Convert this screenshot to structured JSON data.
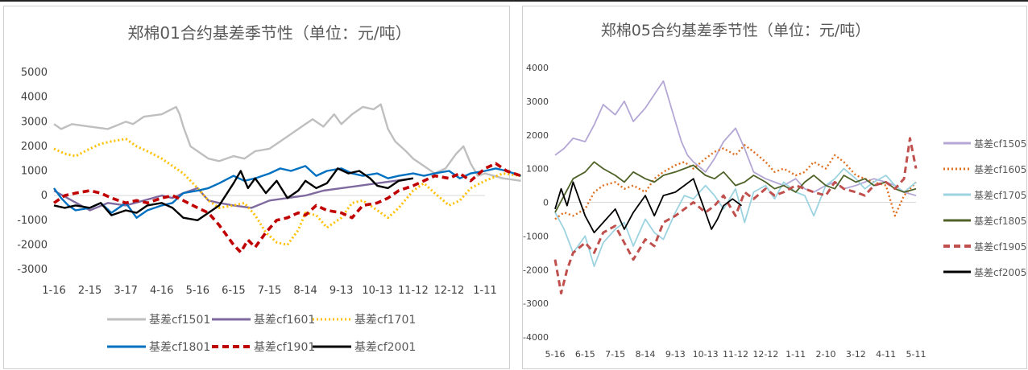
{
  "chart_data": [
    {
      "type": "line",
      "title": "郑棉01合约基差季节性（单位：元/吨）",
      "x_ticks": [
        "1-16",
        "2-15",
        "3-17",
        "4-16",
        "5-16",
        "6-15",
        "7-15",
        "8-14",
        "9-13",
        "10-13",
        "11-12",
        "12-12",
        "1-11"
      ],
      "y_ticks": [
        "5000",
        "4000",
        "3000",
        "2000",
        "1000",
        "0",
        "-1000",
        "-2000",
        "-3000"
      ],
      "ylim": [
        -3000,
        5000
      ],
      "legend_position": "bottom",
      "series": [
        {
          "name": "基差cf1501",
          "color": "#bfbfbf",
          "style": "solid",
          "x": [
            0,
            0.2,
            0.5,
            1,
            1.5,
            2,
            2.2,
            2.5,
            3,
            3.4,
            3.5,
            3.6,
            3.7,
            3.8,
            4,
            4.3,
            4.6,
            5,
            5.3,
            5.6,
            6,
            6.3,
            6.6,
            7,
            7.2,
            7.5,
            7.8,
            8,
            8.3,
            8.6,
            8.9,
            9.1,
            9.3,
            9.5,
            9.8,
            10,
            10.3,
            10.6,
            10.9,
            11.2,
            11.4,
            11.6,
            11.8,
            12,
            12.5,
            13
          ],
          "y": [
            2900,
            2700,
            2900,
            2800,
            2700,
            3000,
            2900,
            3200,
            3300,
            3600,
            3300,
            2800,
            2400,
            2000,
            1800,
            1500,
            1400,
            1600,
            1500,
            1800,
            1900,
            2200,
            2500,
            2900,
            3100,
            2800,
            3300,
            2900,
            3300,
            3600,
            3500,
            3700,
            2700,
            2200,
            1800,
            1500,
            1200,
            900,
            1100,
            1700,
            2000,
            1300,
            800,
            900,
            700,
            600
          ]
        },
        {
          "name": "基差cf1601",
          "color": "#7f6a9f",
          "style": "solid",
          "x": [
            0,
            0.5,
            1,
            1.5,
            2,
            2.5,
            3,
            3.3,
            3.6,
            4,
            4.3,
            4.6,
            5,
            5.5,
            6,
            6.5,
            7,
            7.5,
            8,
            8.5,
            9,
            9.5,
            10
          ],
          "y": [
            200,
            -200,
            -600,
            -300,
            -400,
            -200,
            0,
            -100,
            100,
            300,
            -200,
            -300,
            -400,
            -500,
            -200,
            -100,
            0,
            200,
            300,
            400,
            500,
            600,
            700
          ]
        },
        {
          "name": "基差cf1701",
          "color": "#ffc000",
          "style": "dotted",
          "x": [
            0,
            0.3,
            0.6,
            1,
            1.3,
            1.6,
            2,
            2.3,
            2.6,
            3,
            3.3,
            3.6,
            4,
            4.3,
            4.6,
            5,
            5.3,
            5.6,
            5.9,
            6.2,
            6.5,
            6.8,
            7,
            7.3,
            7.6,
            8,
            8.3,
            8.6,
            9,
            9.3,
            9.6,
            10,
            10.3,
            10.6,
            11,
            11.3,
            11.6,
            12,
            12.5,
            13
          ],
          "y": [
            1900,
            1700,
            1600,
            1900,
            2100,
            2200,
            2300,
            2000,
            1800,
            1500,
            1200,
            900,
            300,
            -200,
            -500,
            -400,
            -300,
            -800,
            -1500,
            -1900,
            -2000,
            -1400,
            -700,
            -800,
            -1300,
            -900,
            -300,
            -200,
            -600,
            -900,
            -500,
            200,
            500,
            100,
            -400,
            -200,
            300,
            600,
            900,
            800
          ]
        },
        {
          "name": "基差cf1801",
          "color": "#0070c0",
          "style": "solid",
          "x": [
            0,
            0.2,
            0.4,
            0.6,
            1,
            1.3,
            1.6,
            2,
            2.3,
            2.6,
            3,
            3.3,
            3.6,
            4,
            4.3,
            4.6,
            5,
            5.3,
            5.6,
            6,
            6.3,
            6.6,
            7,
            7.3,
            7.6,
            8,
            8.3,
            8.6,
            9,
            9.3,
            9.6,
            10,
            10.3,
            10.6,
            11,
            11.3,
            11.6,
            12,
            12.3,
            12.6,
            13
          ],
          "y": [
            300,
            -100,
            -400,
            -600,
            -500,
            -300,
            -700,
            -300,
            -900,
            -600,
            -400,
            -300,
            100,
            200,
            300,
            500,
            800,
            600,
            700,
            900,
            1100,
            1000,
            1200,
            800,
            1000,
            1100,
            900,
            800,
            900,
            700,
            800,
            900,
            800,
            900,
            1000,
            700,
            900,
            1000,
            1100,
            1000,
            800
          ]
        },
        {
          "name": "基差cf1901",
          "color": "#c00000",
          "style": "dashed",
          "x": [
            0,
            0.3,
            0.6,
            1,
            1.3,
            1.6,
            2,
            2.3,
            2.6,
            3,
            3.3,
            3.6,
            4,
            4.3,
            4.6,
            5,
            5.2,
            5.4,
            5.6,
            5.9,
            6.2,
            6.5,
            6.8,
            7,
            7.3,
            7.6,
            8,
            8.3,
            8.6,
            9,
            9.3,
            9.6,
            10,
            10.3,
            10.6,
            11,
            11.3,
            11.6,
            12,
            12.3,
            12.6,
            13
          ],
          "y": [
            -300,
            0,
            100,
            200,
            100,
            -100,
            -300,
            -200,
            -300,
            -100,
            0,
            -200,
            -500,
            -700,
            -1200,
            -2000,
            -2300,
            -1800,
            -2100,
            -1500,
            -1000,
            -900,
            -700,
            -800,
            -400,
            -600,
            -700,
            -900,
            -400,
            -300,
            -100,
            200,
            400,
            600,
            800,
            700,
            900,
            600,
            1100,
            1300,
            1000,
            800
          ]
        },
        {
          "name": "基差cf2001",
          "color": "#000000",
          "style": "solid",
          "x": [
            0,
            0.3,
            0.6,
            1,
            1.3,
            1.6,
            2,
            2.3,
            2.6,
            3,
            3.3,
            3.6,
            4,
            4.3,
            4.6,
            5,
            5.2,
            5.4,
            5.6,
            5.9,
            6.2,
            6.5,
            6.8,
            7,
            7.3,
            7.6,
            7.9,
            8.2,
            8.5,
            8.8,
            9,
            9.3,
            9.6,
            10
          ],
          "y": [
            -400,
            -500,
            -400,
            -500,
            -300,
            -800,
            -600,
            -700,
            -400,
            -300,
            -500,
            -900,
            -1000,
            -700,
            -400,
            500,
            1000,
            300,
            700,
            100,
            600,
            -100,
            200,
            600,
            300,
            500,
            1100,
            900,
            1000,
            700,
            400,
            300,
            600,
            700
          ]
        }
      ]
    },
    {
      "type": "line",
      "title": "郑棉05合约基差季节性（单位：元/吨）",
      "x_ticks": [
        "5-16",
        "6-15",
        "7-15",
        "8-14",
        "9-13",
        "10-13",
        "11-12",
        "12-12",
        "1-11",
        "2-10",
        "3-12",
        "4-11",
        "5-11"
      ],
      "y_ticks": [
        "4000",
        "3000",
        "2000",
        "1000",
        "0",
        "-1000",
        "-2000",
        "-3000",
        "-4000"
      ],
      "ylim": [
        -4000,
        4000
      ],
      "legend_position": "right",
      "series": [
        {
          "name": "基差cf1505",
          "color": "#b4a7d6",
          "style": "solid",
          "x": [
            0,
            0.3,
            0.6,
            1,
            1.3,
            1.6,
            2,
            2.3,
            2.6,
            3,
            3.3,
            3.6,
            4,
            4.2,
            4.4,
            4.6,
            5,
            5.3,
            5.6,
            6,
            6.3,
            6.6,
            7,
            7.3,
            7.6,
            8,
            8.3,
            8.6,
            9,
            9.3,
            9.6,
            10,
            10.3,
            10.6,
            11,
            11.3,
            11.6,
            12
          ],
          "y": [
            1400,
            1600,
            1900,
            1800,
            2300,
            2900,
            2600,
            3000,
            2400,
            2800,
            3200,
            3600,
            2400,
            1800,
            1400,
            1200,
            900,
            1300,
            1800,
            2200,
            1600,
            900,
            700,
            600,
            500,
            700,
            400,
            300,
            500,
            600,
            400,
            500,
            600,
            700,
            600,
            500,
            300,
            200
          ]
        },
        {
          "name": "基差cf1605",
          "color": "#e07020",
          "style": "dotted",
          "x": [
            0,
            0.3,
            0.6,
            1,
            1.3,
            1.6,
            2,
            2.3,
            2.6,
            3,
            3.3,
            3.6,
            4,
            4.3,
            4.6,
            5,
            5.3,
            5.6,
            6,
            6.3,
            6.6,
            7,
            7.3,
            7.6,
            8,
            8.3,
            8.6,
            9,
            9.3,
            9.6,
            10,
            10.3,
            10.6,
            11,
            11.3,
            11.6,
            12
          ],
          "y": [
            -500,
            -300,
            -400,
            -200,
            300,
            500,
            600,
            400,
            500,
            300,
            700,
            900,
            1100,
            1200,
            1000,
            1300,
            1500,
            1600,
            1400,
            1700,
            1500,
            1200,
            900,
            1000,
            800,
            900,
            1200,
            1000,
            1400,
            1200,
            800,
            700,
            600,
            500,
            -400,
            200,
            600
          ]
        },
        {
          "name": "基差cf1705",
          "color": "#9dd3e0",
          "style": "solid",
          "x": [
            0,
            0.3,
            0.6,
            1,
            1.3,
            1.6,
            2,
            2.3,
            2.6,
            3,
            3.3,
            3.6,
            4,
            4.3,
            4.6,
            5,
            5.3,
            5.6,
            6,
            6.3,
            6.6,
            7,
            7.3,
            7.6,
            8,
            8.3,
            8.6,
            9,
            9.3,
            9.6,
            10,
            10.3,
            10.6,
            11,
            11.3,
            11.6,
            12
          ],
          "y": [
            -300,
            -800,
            -1500,
            -1000,
            -1900,
            -1200,
            -800,
            -600,
            -1300,
            -500,
            -900,
            -1100,
            -300,
            200,
            100,
            500,
            200,
            -200,
            400,
            -600,
            300,
            500,
            100,
            600,
            300,
            200,
            -400,
            500,
            700,
            1000,
            700,
            400,
            600,
            800,
            500,
            300,
            600
          ]
        },
        {
          "name": "基差cf1805",
          "color": "#4f6228",
          "style": "solid",
          "x": [
            0,
            0.3,
            0.6,
            1,
            1.3,
            1.6,
            2,
            2.3,
            2.6,
            3,
            3.3,
            3.6,
            4,
            4.3,
            4.6,
            5,
            5.3,
            5.6,
            6,
            6.3,
            6.6,
            7,
            7.3,
            7.6,
            8,
            8.3,
            8.6,
            9,
            9.3,
            9.6,
            10,
            10.3,
            10.6,
            11,
            11.3,
            11.6,
            12
          ],
          "y": [
            -300,
            200,
            700,
            900,
            1200,
            1000,
            800,
            600,
            900,
            700,
            600,
            800,
            900,
            1000,
            1100,
            800,
            700,
            900,
            500,
            600,
            800,
            600,
            400,
            500,
            300,
            600,
            800,
            500,
            400,
            800,
            600,
            700,
            500,
            600,
            400,
            300,
            400
          ]
        },
        {
          "name": "基差cf1905",
          "color": "#c0504d",
          "style": "dashed",
          "x": [
            0,
            0.2,
            0.4,
            0.6,
            1,
            1.3,
            1.6,
            2,
            2.3,
            2.6,
            3,
            3.3,
            3.6,
            4,
            4.3,
            4.6,
            5,
            5.3,
            5.6,
            6,
            6.3,
            6.6,
            7,
            7.3,
            7.6,
            8,
            8.3,
            8.6,
            9,
            9.3,
            9.6,
            10,
            10.3,
            10.6,
            11,
            11.3,
            11.6,
            11.8,
            12
          ],
          "y": [
            -1700,
            -2700,
            -2000,
            -1500,
            -1200,
            -1500,
            -900,
            -700,
            -1200,
            -1700,
            -1100,
            -1300,
            -600,
            -400,
            -200,
            0,
            -300,
            -100,
            200,
            -400,
            300,
            100,
            400,
            200,
            300,
            500,
            400,
            300,
            200,
            600,
            400,
            300,
            200,
            500,
            600,
            400,
            700,
            1900,
            1000
          ]
        },
        {
          "name": "基差cf2005",
          "color": "#000000",
          "style": "solid",
          "x": [
            0,
            0.2,
            0.4,
            0.6,
            1,
            1.3,
            1.6,
            2,
            2.3,
            2.6,
            3,
            3.3,
            3.6,
            4,
            4.3,
            4.6,
            5,
            5.2,
            5.4,
            5.6,
            5.9,
            6.2
          ],
          "y": [
            -200,
            400,
            -100,
            600,
            -400,
            -900,
            -600,
            -200,
            -800,
            -300,
            200,
            -400,
            200,
            300,
            500,
            700,
            -300,
            -800,
            -500,
            -100,
            100,
            -100
          ]
        }
      ]
    }
  ]
}
